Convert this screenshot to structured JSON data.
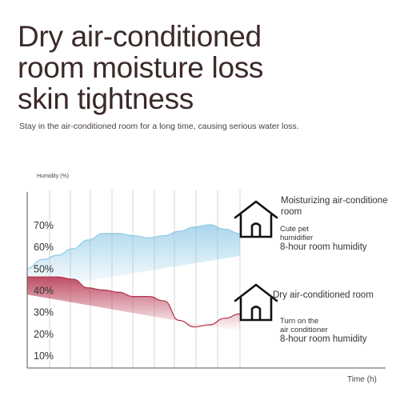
{
  "title_lines": [
    "Dry air-conditioned",
    "room moisture loss",
    "skin tightness"
  ],
  "subtitle": "Stay in the air-conditioned room for a long time, causing serious water loss.",
  "chart_data": {
    "type": "area",
    "ylabel": "Humidity (%)",
    "xlabel": "Time (h)",
    "yticks": [
      "70%",
      "60%",
      "50%",
      "40%",
      "30%",
      "20%",
      "10%"
    ],
    "ylim": [
      5,
      75
    ],
    "grid": true,
    "series": [
      {
        "name": "",
        "color": "#8fc9e6",
        "x": [
          0,
          0.5,
          1,
          1.5,
          2,
          2.5,
          3,
          3.5,
          4,
          4.5,
          5,
          5.5,
          6,
          6.5,
          7
        ],
        "values": [
          50,
          54,
          56,
          59,
          63,
          66,
          66,
          65,
          64,
          65,
          67,
          69,
          70,
          68,
          66
        ]
      },
      {
        "name": "",
        "color": "#b5304a",
        "x": [
          0,
          0.5,
          1,
          1.5,
          2,
          2.5,
          3,
          3.5,
          4,
          4.5,
          5,
          5.5,
          6,
          6.5,
          7
        ],
        "values": [
          46,
          46,
          46,
          45,
          41,
          40,
          39,
          37,
          37,
          35,
          26,
          23,
          24,
          27,
          29
        ]
      }
    ],
    "annotations": [
      {
        "heading_lines": [
          "Moisturizing air-conditione",
          "room"
        ],
        "detail_lines": [
          "Cute pet",
          "humidifier"
        ],
        "footer": "8-hour room humidity",
        "icon": "house-icon"
      },
      {
        "heading_lines": [
          "Dry air-conditioned room"
        ],
        "detail_lines": [
          "Turn on the",
          "air conditioner"
        ],
        "footer": "8-hour room humidity",
        "icon": "house-icon"
      }
    ]
  }
}
